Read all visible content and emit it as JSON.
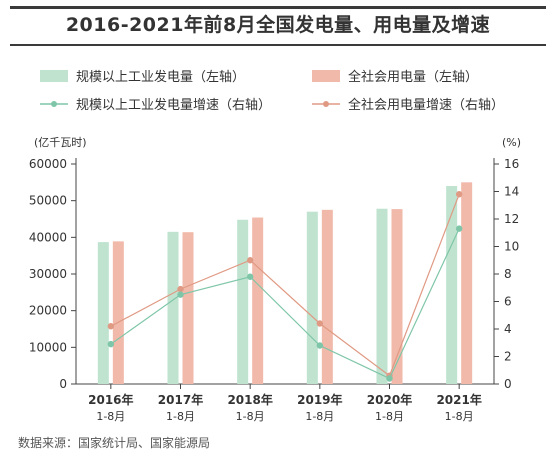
{
  "title": "2016-2021年前8月全国发电量、用电量及增速",
  "source": "数据来源：国家统计局、国家能源局",
  "colors": {
    "gen_bar": "#bfe3cf",
    "use_bar": "#f1b9aa",
    "gen_line": "#7fc6a8",
    "use_line": "#e09a84",
    "axis": "#444444",
    "grid": "#dddddd"
  },
  "chart_data": {
    "type": "bar",
    "categories": [
      "2016年",
      "2017年",
      "2018年",
      "2019年",
      "2020年",
      "2021年"
    ],
    "category_sublabels": [
      "1-8月",
      "1-8月",
      "1-8月",
      "1-8月",
      "1-8月",
      "1-8月"
    ],
    "series": [
      {
        "name": "规模以上工业发电量（左轴）",
        "type": "bar",
        "axis": "left",
        "values": [
          38700,
          41500,
          44800,
          47000,
          47800,
          54000
        ]
      },
      {
        "name": "全社会用电量（左轴）",
        "type": "bar",
        "axis": "left",
        "values": [
          38900,
          41400,
          45400,
          47500,
          47700,
          55000
        ]
      },
      {
        "name": "规模以上工业发电量增速（右轴）",
        "type": "line",
        "axis": "right",
        "values": [
          2.9,
          6.5,
          7.8,
          2.8,
          0.4,
          11.3
        ]
      },
      {
        "name": "全社会用电量增速（右轴）",
        "type": "line",
        "axis": "right",
        "values": [
          4.2,
          6.9,
          9.0,
          4.4,
          0.6,
          13.8
        ]
      }
    ],
    "ylabel_left": "(亿千瓦时)",
    "ylabel_right": "(%)",
    "ylim_left": [
      0,
      60000
    ],
    "ylim_right": [
      0,
      16
    ],
    "yticks_left": [
      "0",
      "10000",
      "20000",
      "30000",
      "40000",
      "50000",
      "60000"
    ],
    "yticks_right": [
      "0",
      "2",
      "4",
      "6",
      "8",
      "10",
      "12",
      "14",
      "16"
    ],
    "legend_position": "top",
    "grid": false
  }
}
